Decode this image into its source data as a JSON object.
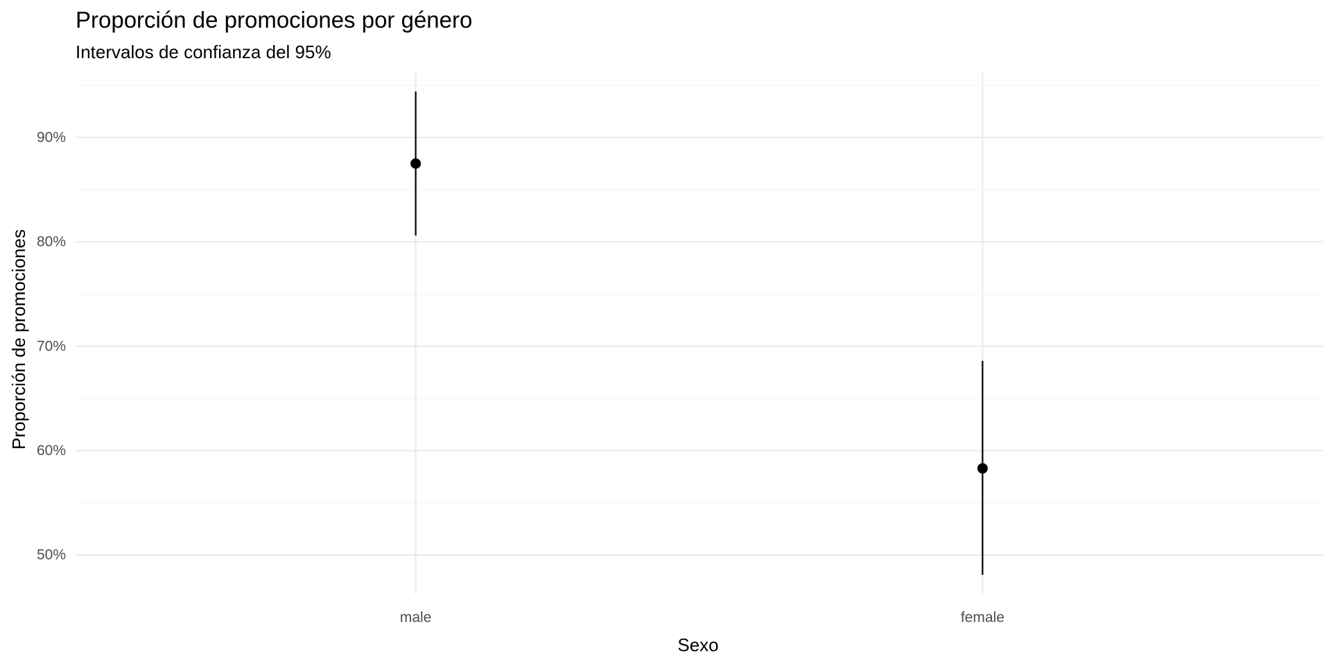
{
  "chart_data": {
    "type": "scatter",
    "title": "Proporción de promociones por género",
    "subtitle": "Intervalos de confianza del 95%",
    "xlabel": "Sexo",
    "ylabel": "Proporción de promociones",
    "categories": [
      "male",
      "female"
    ],
    "points": [
      {
        "category": "male",
        "estimate": 0.875,
        "lower": 0.806,
        "upper": 0.944
      },
      {
        "category": "female",
        "estimate": 0.583,
        "lower": 0.481,
        "upper": 0.686
      }
    ],
    "y_ticks": [
      {
        "value": 0.5,
        "label": "50%"
      },
      {
        "value": 0.6,
        "label": "60%"
      },
      {
        "value": 0.7,
        "label": "70%"
      },
      {
        "value": 0.8,
        "label": "80%"
      },
      {
        "value": 0.9,
        "label": "90%"
      }
    ],
    "y_minor_ticks": [
      0.55,
      0.65,
      0.75,
      0.85,
      0.95
    ],
    "ylim": [
      0.463,
      0.962
    ],
    "grid": true,
    "legend": "none",
    "colors": {
      "point": "#000000",
      "grid_major": "#ebebeb",
      "grid_minor": "#f4f4f4",
      "tick_text": "#4d4d4d"
    }
  }
}
